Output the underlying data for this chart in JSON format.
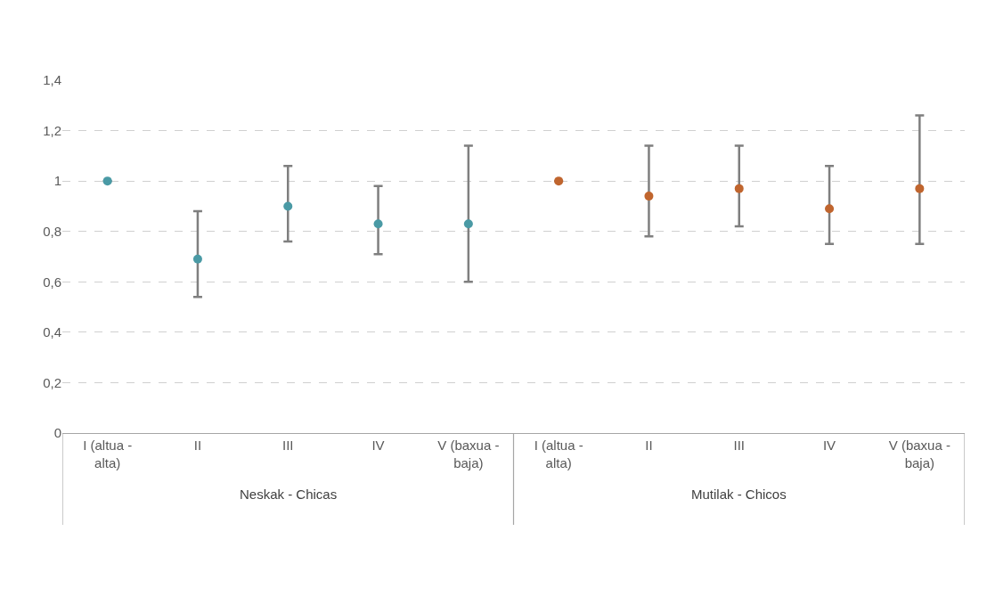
{
  "chart_data": {
    "type": "scatter",
    "categories": [
      "I (altua - alta)",
      "II",
      "III",
      "IV",
      "V (baxua - baja)",
      "I (altua - alta)",
      "II",
      "III",
      "IV",
      "V (baxua - baja)"
    ],
    "series": [
      {
        "color": "#4a9aa5",
        "values": [
          1,
          0.69,
          0.9,
          0.83,
          0.83,
          null,
          null,
          null,
          null,
          null
        ],
        "errors": [
          null,
          [
            0.54,
            0.88
          ],
          [
            0.76,
            1.06
          ],
          [
            0.71,
            0.98
          ],
          [
            0.6,
            1.14
          ],
          null,
          null,
          null,
          null,
          null
        ]
      },
      {
        "color": "#c0652e",
        "values": [
          null,
          null,
          null,
          null,
          null,
          1,
          0.94,
          0.97,
          0.89,
          0.97
        ],
        "errors": [
          null,
          null,
          null,
          null,
          null,
          null,
          [
            0.78,
            1.14
          ],
          [
            0.82,
            1.14
          ],
          [
            0.75,
            1.06
          ],
          [
            0.75,
            1.26
          ]
        ]
      }
    ],
    "ylim": [
      0,
      1.4
    ],
    "yticks": [
      {
        "value": 0,
        "label": "0"
      },
      {
        "value": 0.2,
        "label": "0,2"
      },
      {
        "value": 0.4,
        "label": "0,4"
      },
      {
        "value": 0.6,
        "label": "0,6"
      },
      {
        "value": 0.8,
        "label": "0,8"
      },
      {
        "value": 1,
        "label": "1"
      },
      {
        "value": 1.2,
        "label": "1,2"
      },
      {
        "value": 1.4,
        "label": "1,4"
      }
    ],
    "annotations": [
      "Neskak - Chicas",
      "Mutilak - Chicos"
    ],
    "grid": "y",
    "marker": "circle",
    "legend": false
  }
}
